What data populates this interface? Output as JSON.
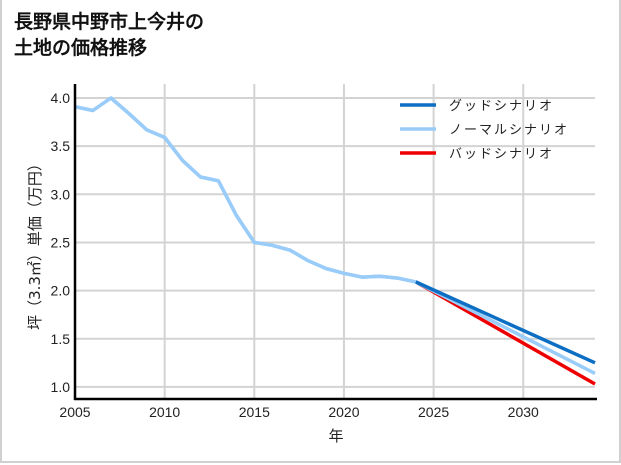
{
  "title": "長野県中野市上今井の\n土地の価格推移",
  "colors": {
    "good": "#0d6fc4",
    "normal": "#99ccf8",
    "bad": "#ee0000",
    "grid": "#d3d3d3",
    "axis": "#000000"
  },
  "chart_data": {
    "type": "line",
    "title": "長野県中野市上今井の土地の価格推移",
    "xlabel": "年",
    "ylabel": "坪（3.3㎡）単価（万円）",
    "xlim": [
      2005,
      2034
    ],
    "ylim": [
      0.88,
      4.15
    ],
    "grid": true,
    "legend_position": "upper right",
    "x_ticks": [
      2005,
      2010,
      2015,
      2020,
      2025,
      2030
    ],
    "y_ticks": [
      1.0,
      1.5,
      2.0,
      2.5,
      3.0,
      3.5,
      4.0
    ],
    "x_tick_labels": [
      "2005",
      "2010",
      "2015",
      "2020",
      "2025",
      "2030"
    ],
    "y_tick_labels": [
      "1.0",
      "1.5",
      "2.0",
      "2.5",
      "3.0",
      "3.5",
      "4.0"
    ],
    "series": [
      {
        "name": "グッドシナリオ",
        "color": "#0d6fc4",
        "x": [
          2024,
          2034
        ],
        "values": [
          2.09,
          1.25
        ]
      },
      {
        "name": "ノーマルシナリオ",
        "color": "#99ccf8",
        "x": [
          2005,
          2006,
          2007,
          2008,
          2009,
          2010,
          2011,
          2012,
          2013,
          2014,
          2015,
          2016,
          2017,
          2018,
          2019,
          2020,
          2021,
          2022,
          2023,
          2024,
          2034
        ],
        "values": [
          3.91,
          3.87,
          4.0,
          3.84,
          3.67,
          3.59,
          3.35,
          3.18,
          3.14,
          2.78,
          2.5,
          2.47,
          2.42,
          2.31,
          2.23,
          2.18,
          2.14,
          2.15,
          2.13,
          2.09,
          1.14
        ]
      },
      {
        "name": "バッドシナリオ",
        "color": "#ee0000",
        "x": [
          2024,
          2034
        ],
        "values": [
          2.09,
          1.03
        ]
      }
    ]
  },
  "legend": [
    {
      "label": "グッドシナリオ",
      "key": "good"
    },
    {
      "label": "ノーマルシナリオ",
      "key": "normal"
    },
    {
      "label": "バッドシナリオ",
      "key": "bad"
    }
  ]
}
